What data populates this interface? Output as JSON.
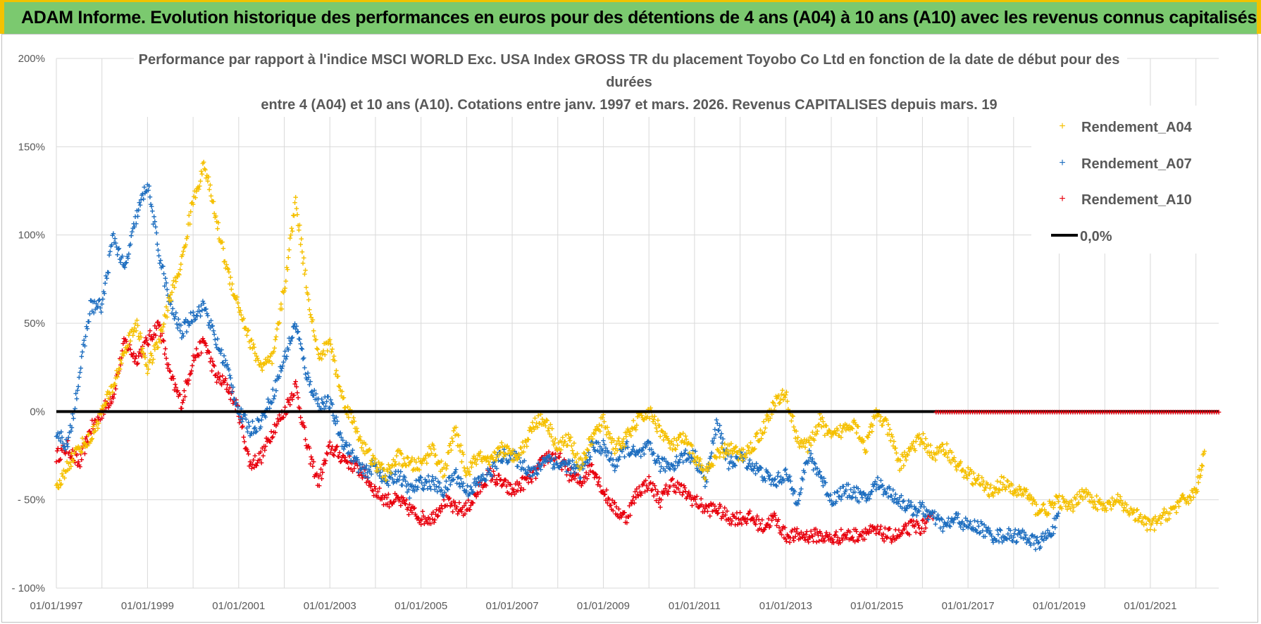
{
  "header": {
    "title": "ADAM Informe. Evolution historique des performances en euros pour des détentions de 4 ans (A04) à 10 ans (A10) avec les revenus connus capitalisés"
  },
  "colors": {
    "banner": "#7bc96f",
    "banner_border": "#f2c200",
    "A04": "#f5c000",
    "A07": "#1f6fc0",
    "A10": "#e8000d",
    "zero": "#000000",
    "grid": "#d9d9d9"
  },
  "chart_data": {
    "type": "scatter",
    "title_lines": [
      "Performance par rapport à l'indice MSCI WORLD Exc. USA Index GROSS TR  du placement Toyobo Co Ltd en fonction de la date de début pour des",
      "durées",
      "entre 4 (A04) et 10 ans (A10).  Cotations entre janv. 1997 et mars. 2026.  Revenus CAPITALISES depuis mars. 19"
    ],
    "xlim": [
      "1997-01-01",
      "2022-06-30"
    ],
    "ylim": [
      -100,
      200
    ],
    "y_ticks": [
      "200%",
      "150%",
      "100%",
      "50%",
      "0%",
      "- 50%",
      "- 100%"
    ],
    "y_tick_values": [
      200,
      150,
      100,
      50,
      0,
      -50,
      -100
    ],
    "x_ticks": [
      "01/01/1997",
      "01/01/1999",
      "01/01/2001",
      "01/01/2003",
      "01/01/2005",
      "01/01/2007",
      "01/01/2009",
      "01/01/2011",
      "01/01/2013",
      "01/01/2015",
      "01/01/2017",
      "01/01/2019",
      "01/01/2021"
    ],
    "x_tick_years": [
      1997,
      1999,
      2001,
      2003,
      2005,
      2007,
      2009,
      2011,
      2013,
      2015,
      2017,
      2019,
      2021
    ],
    "legend_position": "right",
    "grid": true,
    "series": [
      {
        "name": "Rendement_A04",
        "marker": "+",
        "x": [
          1997.0,
          1997.25,
          1997.5,
          1997.75,
          1998.0,
          1998.25,
          1998.5,
          1998.75,
          1999.0,
          1999.25,
          1999.5,
          1999.75,
          2000.0,
          2000.25,
          2000.5,
          2000.75,
          2001.0,
          2001.25,
          2001.5,
          2001.75,
          2002.0,
          2002.25,
          2002.5,
          2002.75,
          2003.0,
          2003.25,
          2003.5,
          2003.75,
          2004.0,
          2004.25,
          2004.5,
          2004.75,
          2005.0,
          2005.25,
          2005.5,
          2005.75,
          2006.0,
          2006.25,
          2006.5,
          2006.75,
          2007.0,
          2007.25,
          2007.5,
          2007.75,
          2008.0,
          2008.25,
          2008.5,
          2008.75,
          2009.0,
          2009.25,
          2009.5,
          2009.75,
          2010.0,
          2010.25,
          2010.5,
          2010.75,
          2011.0,
          2011.25,
          2011.5,
          2011.75,
          2012.0,
          2012.25,
          2012.5,
          2012.75,
          2013.0,
          2013.25,
          2013.5,
          2013.75,
          2014.0,
          2014.25,
          2014.5,
          2014.75,
          2015.0,
          2015.25,
          2015.5,
          2015.75,
          2016.0,
          2016.25,
          2016.5,
          2016.75,
          2017.0,
          2017.25,
          2017.5,
          2017.75,
          2018.0,
          2018.25,
          2018.5,
          2018.75,
          2019.0,
          2019.25,
          2019.5,
          2019.75,
          2020.0,
          2020.25,
          2020.5,
          2020.75,
          2021.0,
          2021.25,
          2021.5,
          2021.75,
          2022.0,
          2022.2
        ],
        "y": [
          -45,
          -30,
          -20,
          -15,
          0,
          15,
          35,
          50,
          25,
          40,
          65,
          85,
          120,
          140,
          110,
          80,
          60,
          40,
          25,
          30,
          70,
          120,
          70,
          30,
          40,
          10,
          -5,
          -20,
          -30,
          -35,
          -25,
          -30,
          -30,
          -20,
          -35,
          -10,
          -35,
          -25,
          -30,
          -20,
          -25,
          -20,
          -5,
          -5,
          -20,
          -15,
          -30,
          -15,
          -5,
          -20,
          -15,
          -5,
          0,
          -10,
          -20,
          -15,
          -25,
          -35,
          -25,
          -20,
          -25,
          -20,
          -10,
          5,
          10,
          -15,
          -20,
          -5,
          -15,
          -10,
          -5,
          -20,
          0,
          -10,
          -30,
          -20,
          -15,
          -25,
          -20,
          -30,
          -35,
          -40,
          -45,
          -40,
          -45,
          -45,
          -55,
          -55,
          -50,
          -55,
          -45,
          -50,
          -55,
          -50,
          -55,
          -60,
          -65,
          -60,
          -55,
          -50,
          -45,
          -20
        ]
      },
      {
        "name": "Rendement_A07",
        "marker": "+",
        "x": [
          1997.0,
          1997.25,
          1997.5,
          1997.75,
          1998.0,
          1998.25,
          1998.5,
          1998.75,
          1999.0,
          1999.25,
          1999.5,
          1999.75,
          2000.0,
          2000.25,
          2000.5,
          2000.75,
          2001.0,
          2001.25,
          2001.5,
          2001.75,
          2002.0,
          2002.25,
          2002.5,
          2002.75,
          2003.0,
          2003.25,
          2003.5,
          2003.75,
          2004.0,
          2004.25,
          2004.5,
          2004.75,
          2005.0,
          2005.25,
          2005.5,
          2005.75,
          2006.0,
          2006.25,
          2006.5,
          2006.75,
          2007.0,
          2007.25,
          2007.5,
          2007.75,
          2008.0,
          2008.25,
          2008.5,
          2008.75,
          2009.0,
          2009.25,
          2009.5,
          2009.75,
          2010.0,
          2010.25,
          2010.5,
          2010.75,
          2011.0,
          2011.25,
          2011.5,
          2011.75,
          2012.0,
          2012.25,
          2012.5,
          2012.75,
          2013.0,
          2013.25,
          2013.5,
          2013.75,
          2014.0,
          2014.25,
          2014.5,
          2014.75,
          2015.0,
          2015.25,
          2015.5,
          2015.75,
          2016.0,
          2016.25,
          2016.5,
          2016.75,
          2017.0,
          2017.25,
          2017.5,
          2017.75,
          2018.0,
          2018.25,
          2018.5,
          2018.75,
          2019.0
        ],
        "y": [
          -10,
          -20,
          20,
          60,
          60,
          100,
          80,
          110,
          130,
          90,
          60,
          45,
          55,
          60,
          40,
          25,
          0,
          -10,
          -5,
          10,
          30,
          50,
          20,
          5,
          5,
          -15,
          -25,
          -35,
          -30,
          -40,
          -35,
          -45,
          -40,
          -40,
          -45,
          -35,
          -45,
          -40,
          -35,
          -25,
          -25,
          -30,
          -35,
          -25,
          -30,
          -30,
          -35,
          -20,
          -20,
          -30,
          -20,
          -25,
          -20,
          -30,
          -30,
          -25,
          -25,
          -40,
          -5,
          -30,
          -25,
          -30,
          -35,
          -40,
          -35,
          -50,
          -25,
          -35,
          -50,
          -45,
          -45,
          -50,
          -40,
          -45,
          -50,
          -55,
          -55,
          -60,
          -65,
          -60,
          -65,
          -65,
          -70,
          -70,
          -70,
          -70,
          -75,
          -70,
          -60
        ]
      },
      {
        "name": "Rendement_A10",
        "marker": "+",
        "x": [
          1997.0,
          1997.25,
          1997.5,
          1997.75,
          1998.0,
          1998.25,
          1998.5,
          1998.75,
          1999.0,
          1999.25,
          1999.5,
          1999.75,
          2000.0,
          2000.25,
          2000.5,
          2000.75,
          2001.0,
          2001.25,
          2001.5,
          2001.75,
          2002.0,
          2002.25,
          2002.5,
          2002.75,
          2003.0,
          2003.25,
          2003.5,
          2003.75,
          2004.0,
          2004.25,
          2004.5,
          2004.75,
          2005.0,
          2005.25,
          2005.5,
          2005.75,
          2006.0,
          2006.25,
          2006.5,
          2006.75,
          2007.0,
          2007.25,
          2007.5,
          2007.75,
          2008.0,
          2008.25,
          2008.5,
          2008.75,
          2009.0,
          2009.25,
          2009.5,
          2009.75,
          2010.0,
          2010.25,
          2010.5,
          2010.75,
          2011.0,
          2011.25,
          2011.5,
          2011.75,
          2012.0,
          2012.25,
          2012.5,
          2012.75,
          2013.0,
          2013.25,
          2013.5,
          2013.75,
          2014.0,
          2014.25,
          2014.5,
          2014.75,
          2015.0,
          2015.25,
          2015.5,
          2015.75,
          2016.0,
          2016.25
        ],
        "y": [
          -25,
          -20,
          -30,
          -10,
          0,
          10,
          40,
          30,
          40,
          50,
          20,
          5,
          30,
          40,
          20,
          15,
          0,
          -30,
          -25,
          -10,
          0,
          15,
          -20,
          -40,
          -20,
          -25,
          -30,
          -35,
          -45,
          -50,
          -50,
          -55,
          -60,
          -60,
          -50,
          -55,
          -55,
          -45,
          -35,
          -40,
          -45,
          -40,
          -35,
          -25,
          -25,
          -35,
          -40,
          -30,
          -45,
          -55,
          -60,
          -45,
          -40,
          -50,
          -40,
          -45,
          -50,
          -55,
          -55,
          -60,
          -60,
          -60,
          -65,
          -60,
          -70,
          -70,
          -70,
          -70,
          -72,
          -70,
          -70,
          -68,
          -68,
          -70,
          -70,
          -65,
          -65,
          -60
        ]
      },
      {
        "name": "0,0%",
        "type": "line",
        "x": [
          1997.0,
          2022.5
        ],
        "y": [
          0,
          0
        ]
      }
    ],
    "zero_red_tail_from": 2016.3
  }
}
